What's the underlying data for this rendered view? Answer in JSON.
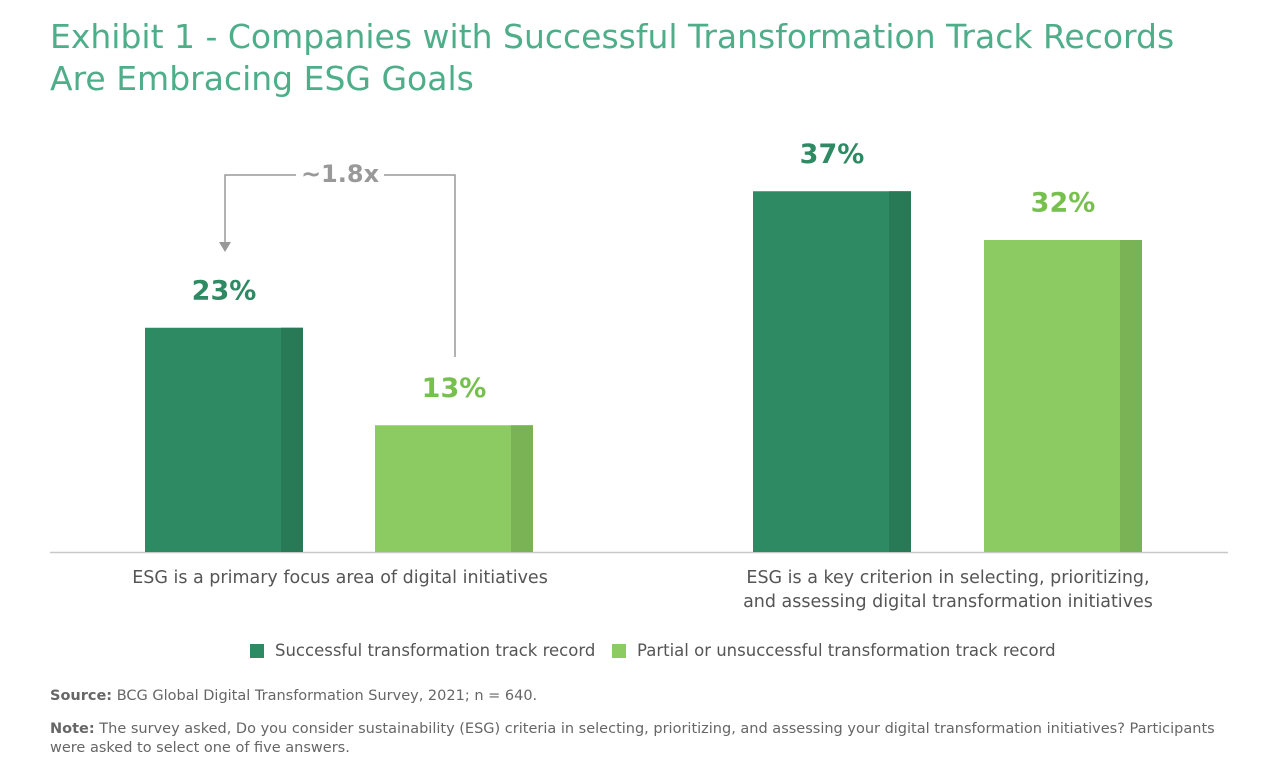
{
  "chart_data": {
    "type": "bar",
    "title": "Exhibit 1 - Companies with Successful Transformation Track Records Are Embracing ESG Goals",
    "categories": [
      "ESG is a primary focus area of digital initiatives",
      "ESG is a key criterion in selecting, prioritizing, and assessing digital transformation initiatives"
    ],
    "series": [
      {
        "name": "Successful transformation track record",
        "color": "#2e8a62",
        "values": [
          23,
          37
        ],
        "value_labels": [
          "23%",
          "37%"
        ]
      },
      {
        "name": "Partial or unsuccessful transformation track record",
        "color": "#8bcb62",
        "values": [
          13,
          32
        ],
        "value_labels": [
          "13%",
          "32%"
        ]
      }
    ],
    "annotation": "~1.8x",
    "source_label": "Source:",
    "source_text": "BCG Global Digital Transformation Survey, 2021; n = 640.",
    "note_label": "Note:",
    "note_text": "The survey asked, Do you consider sustainability (ESG) criteria in selecting, prioritizing, and assessing your digital transformation initiatives? Participants were asked to select one of five answers."
  }
}
